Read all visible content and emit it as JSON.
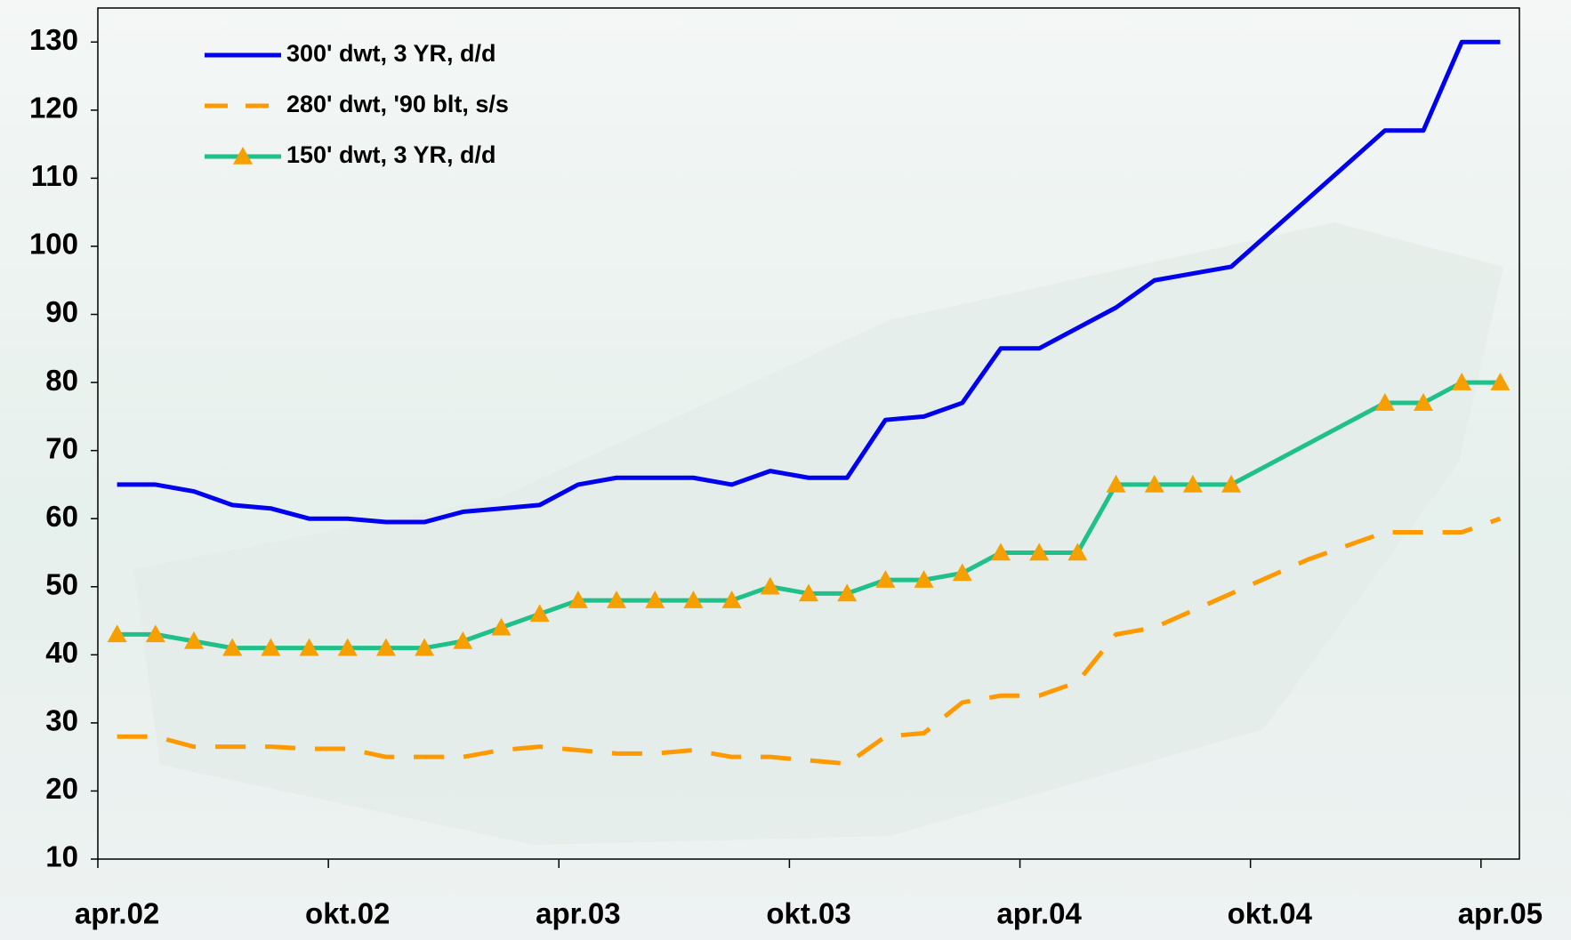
{
  "chart_data": {
    "type": "line",
    "categories": [
      "apr.02",
      null,
      null,
      null,
      null,
      null,
      "okt.02",
      null,
      null,
      null,
      null,
      null,
      "apr.03",
      null,
      null,
      null,
      null,
      null,
      "okt.03",
      null,
      null,
      null,
      null,
      null,
      "apr.04",
      null,
      null,
      null,
      null,
      null,
      "okt.04",
      null,
      null,
      null,
      null,
      null,
      "apr.05"
    ],
    "series": [
      {
        "name": "300' dwt, 3 YR, d/d",
        "color": "#0000ee",
        "dash": "solid",
        "values": [
          65,
          65,
          64,
          62,
          61.5,
          60,
          60,
          59.5,
          59.5,
          61,
          61.5,
          62,
          65,
          66,
          66,
          66,
          65,
          67,
          66,
          66,
          74.5,
          75,
          77,
          85,
          85,
          88,
          91,
          95,
          96,
          97,
          102,
          107,
          112,
          117,
          117,
          130,
          130
        ]
      },
      {
        "name": "280' dwt, '90 blt, s/s",
        "color": "#ff9900",
        "dash": "dashed",
        "values": [
          28,
          28,
          26.5,
          26.5,
          26.5,
          26.2,
          26.2,
          25,
          25,
          25,
          26,
          26.5,
          26,
          25.5,
          25.5,
          26,
          25,
          25,
          24.5,
          24,
          28,
          28.5,
          33,
          34,
          34,
          36,
          43,
          44,
          46.5,
          49,
          51.5,
          54,
          56,
          58,
          58,
          58,
          60
        ]
      },
      {
        "name": "150' dwt, 3 YR, d/d",
        "color": "#1fc08a",
        "dash": "solid",
        "marker": "triangle",
        "marker_color": "#f5a000",
        "connect_nulls": true,
        "values": [
          43,
          43,
          42,
          41,
          41,
          41,
          41,
          41,
          41,
          42,
          44,
          46,
          48,
          48,
          48,
          48,
          48,
          50,
          49,
          49,
          51,
          51,
          52,
          55,
          55,
          55,
          65,
          65,
          65,
          65,
          null,
          null,
          null,
          77,
          77,
          80,
          80
        ]
      }
    ],
    "ylim": [
      10,
      135
    ],
    "yticks": [
      10,
      20,
      30,
      40,
      50,
      60,
      70,
      80,
      90,
      100,
      110,
      120,
      130
    ],
    "legend": "top-left"
  }
}
